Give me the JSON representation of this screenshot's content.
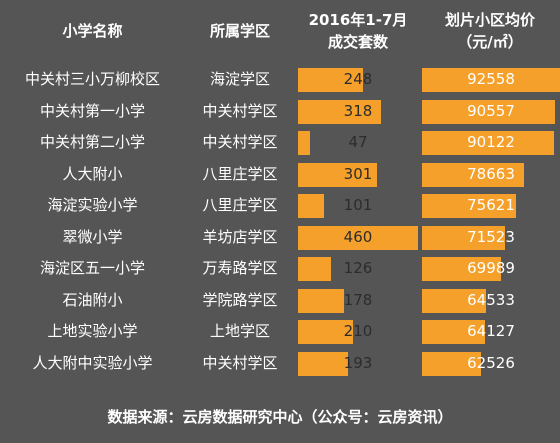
{
  "headers": {
    "school": "小学名称",
    "district": "所属学区",
    "volume_line1": "2016年1-7月",
    "volume_line2": "成交套数",
    "price_line1": "划片小区均价",
    "price_line2": "（元/㎡）"
  },
  "footer": "数据来源：云房数据研究中心（公众号：云房资讯）",
  "colors": {
    "background": "#555555",
    "bar": "#f5a02a",
    "text": "#ffffff"
  },
  "chart_data": {
    "type": "table",
    "columns": [
      "小学名称",
      "所属学区",
      "2016年1-7月成交套数",
      "划片小区均价（元/㎡）"
    ],
    "max_volume": 460,
    "max_price": 92558,
    "rows": [
      {
        "school": "中关村三小万柳校区",
        "district": "海淀学区",
        "volume": "248",
        "price": "92558"
      },
      {
        "school": "中关村第一小学",
        "district": "中关村学区",
        "volume": "318",
        "price": "90557"
      },
      {
        "school": "中关村第二小学",
        "district": "中关村学区",
        "volume": "47",
        "price": "90122"
      },
      {
        "school": "人大附小",
        "district": "八里庄学区",
        "volume": "301",
        "price": "78663"
      },
      {
        "school": "海淀实验小学",
        "district": "八里庄学区",
        "volume": "101",
        "price": "75621"
      },
      {
        "school": "翠微小学",
        "district": "羊坊店学区",
        "volume": "460",
        "price": "71523"
      },
      {
        "school": "海淀区五一小学",
        "district": "万寿路学区",
        "volume": "126",
        "price": "69989"
      },
      {
        "school": "石油附小",
        "district": "学院路学区",
        "volume": "178",
        "price": "64533"
      },
      {
        "school": "上地实验小学",
        "district": "上地学区",
        "volume": "210",
        "price": "64127"
      },
      {
        "school": "人大附中实验小学",
        "district": "中关村学区",
        "volume": "193",
        "price": "62526"
      }
    ]
  }
}
